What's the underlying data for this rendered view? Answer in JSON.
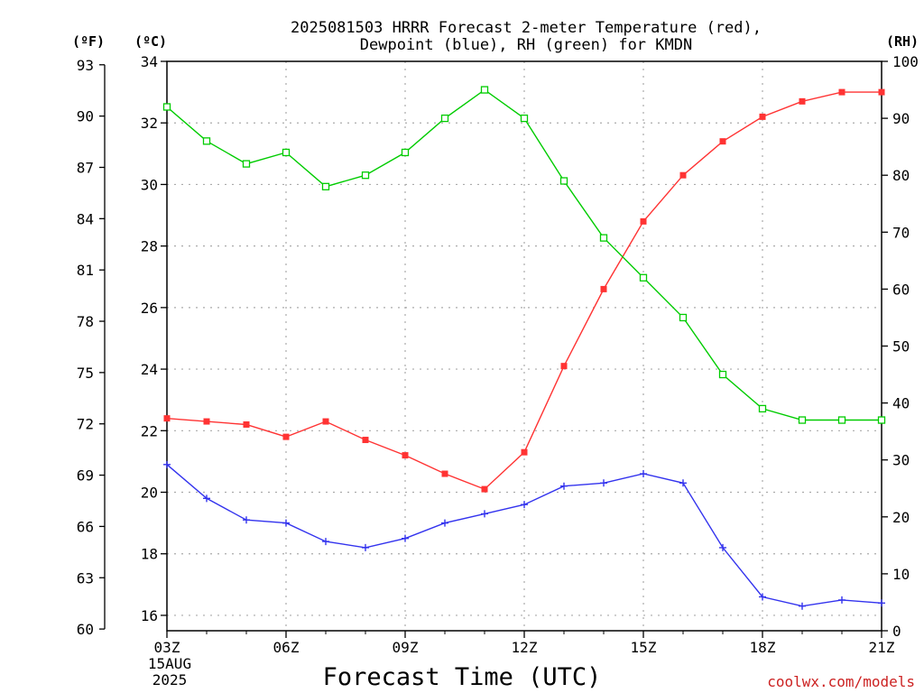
{
  "chart_data": {
    "type": "line",
    "title_lines": [
      "2025081503 HRRR Forecast 2-meter Temperature (red),",
      "Dewpoint (blue), RH (green) for KMDN"
    ],
    "xlabel": "Forecast Time (UTC)",
    "x_ticks": [
      "03Z",
      "06Z",
      "09Z",
      "12Z",
      "15Z",
      "18Z",
      "21Z"
    ],
    "x_subtitle": [
      "15AUG",
      "2025"
    ],
    "xlim": [
      3,
      21
    ],
    "left_outer_axis": {
      "unit_label": "(ºF)",
      "ticks": [
        "60",
        "63",
        "66",
        "69",
        "72",
        "75",
        "78",
        "81",
        "84",
        "87",
        "90",
        "93"
      ]
    },
    "left_inner_axis": {
      "unit_label": "(ºC)",
      "ticks": [
        "16",
        "18",
        "20",
        "22",
        "24",
        "26",
        "28",
        "30",
        "32",
        "34"
      ],
      "ylim": [
        15.5,
        34
      ]
    },
    "right_axis": {
      "unit_label": "(RH)",
      "ticks": [
        "0",
        "10",
        "20",
        "30",
        "40",
        "50",
        "60",
        "70",
        "80",
        "90",
        "100"
      ],
      "ylim": [
        0,
        100
      ]
    },
    "x": [
      3,
      4,
      5,
      6,
      7,
      8,
      9,
      10,
      11,
      12,
      13,
      14,
      15,
      16,
      17,
      18,
      19,
      20,
      21
    ],
    "series": [
      {
        "key": "temp",
        "axis": "celsius",
        "marker": "filled-square",
        "color": "#ff3333",
        "values": [
          22.4,
          22.3,
          22.2,
          21.8,
          22.3,
          21.7,
          21.2,
          20.6,
          20.1,
          21.3,
          24.1,
          26.6,
          28.8,
          30.3,
          31.4,
          32.2,
          32.7,
          33.0,
          33.0
        ]
      },
      {
        "key": "dewpoint",
        "axis": "celsius",
        "marker": "plus",
        "color": "#3333ee",
        "values": [
          20.9,
          19.8,
          19.1,
          19.0,
          18.4,
          18.2,
          18.5,
          19.0,
          19.3,
          19.6,
          20.2,
          20.3,
          20.6,
          20.3,
          18.2,
          16.6,
          16.3,
          16.5,
          16.4
        ]
      },
      {
        "key": "rh",
        "axis": "rh",
        "marker": "open-square",
        "color": "#00cc00",
        "values": [
          92,
          86,
          82,
          84,
          78,
          80,
          84,
          90,
          95,
          90,
          79,
          69,
          62,
          55,
          45,
          39,
          37,
          37,
          37
        ]
      }
    ],
    "grid": true,
    "watermark": "coolwx.com/models"
  }
}
